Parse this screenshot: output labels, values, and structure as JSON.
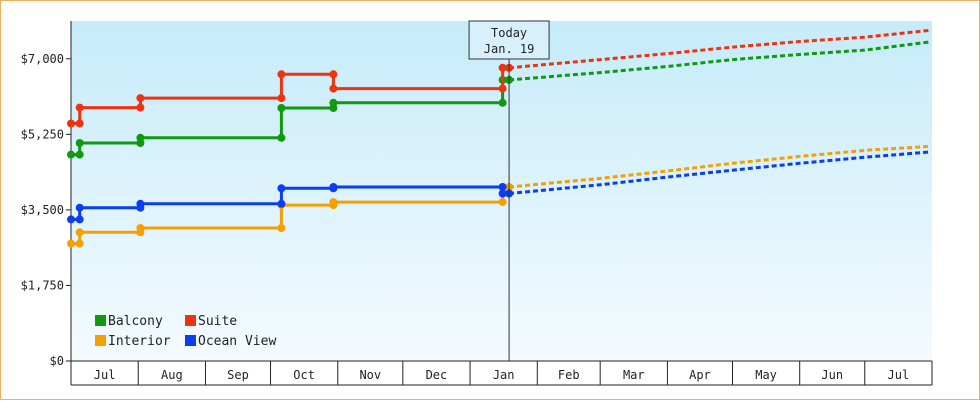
{
  "chart_data": {
    "type": "line",
    "title": "",
    "xlabel": "",
    "ylabel": "",
    "ylim": [
      0,
      7875
    ],
    "y_ticks": [
      0,
      1750,
      3500,
      5250,
      7000
    ],
    "y_tick_labels": [
      "$0",
      "$1,750",
      "$3,500",
      "$5,250",
      "$7,000"
    ],
    "x_month_labels": [
      "Jul",
      "Aug",
      "Sep",
      "Oct",
      "Nov",
      "Dec",
      "Jan",
      "Feb",
      "Mar",
      "Apr",
      "May",
      "Jun",
      "Jul"
    ],
    "x_range": [
      "2023-07-01",
      "2024-07-31"
    ],
    "today": {
      "date": "2024-01-19",
      "label_line1": "Today",
      "label_line2": "Jan. 19"
    },
    "grid": false,
    "legend_placement": "bottom-left",
    "series": [
      {
        "name": "Balcony",
        "color": "#119911",
        "history": [
          [
            "2023-07-01",
            4780
          ],
          [
            "2023-07-05",
            4780
          ],
          [
            "2023-07-05",
            5050
          ],
          [
            "2023-08-02",
            5050
          ],
          [
            "2023-08-02",
            5170
          ],
          [
            "2023-10-06",
            5170
          ],
          [
            "2023-10-06",
            5860
          ],
          [
            "2023-10-30",
            5860
          ],
          [
            "2023-10-30",
            5980
          ],
          [
            "2024-01-16",
            5980
          ],
          [
            "2024-01-16",
            6510
          ],
          [
            "2024-01-19",
            6510
          ]
        ],
        "forecast": [
          [
            "2024-01-19",
            6510
          ],
          [
            "2024-03-01",
            6680
          ],
          [
            "2024-04-01",
            6820
          ],
          [
            "2024-05-01",
            6980
          ],
          [
            "2024-06-01",
            7100
          ],
          [
            "2024-07-01",
            7200
          ],
          [
            "2024-07-31",
            7390
          ]
        ]
      },
      {
        "name": "Suite",
        "color": "#ee3311",
        "history": [
          [
            "2023-07-01",
            5500
          ],
          [
            "2023-07-05",
            5500
          ],
          [
            "2023-07-05",
            5870
          ],
          [
            "2023-08-02",
            5870
          ],
          [
            "2023-08-02",
            6090
          ],
          [
            "2023-10-06",
            6090
          ],
          [
            "2023-10-06",
            6640
          ],
          [
            "2023-10-30",
            6640
          ],
          [
            "2023-10-30",
            6310
          ],
          [
            "2024-01-16",
            6310
          ],
          [
            "2024-01-16",
            6790
          ],
          [
            "2024-01-19",
            6790
          ]
        ],
        "forecast": [
          [
            "2024-01-19",
            6790
          ],
          [
            "2024-03-01",
            6980
          ],
          [
            "2024-04-01",
            7120
          ],
          [
            "2024-05-01",
            7270
          ],
          [
            "2024-06-01",
            7400
          ],
          [
            "2024-07-01",
            7500
          ],
          [
            "2024-07-31",
            7660
          ]
        ]
      },
      {
        "name": "Interior",
        "color": "#f5a000",
        "history": [
          [
            "2023-07-01",
            2720
          ],
          [
            "2023-07-05",
            2720
          ],
          [
            "2023-07-05",
            2980
          ],
          [
            "2023-08-02",
            2980
          ],
          [
            "2023-08-02",
            3080
          ],
          [
            "2023-10-06",
            3080
          ],
          [
            "2023-10-06",
            3610
          ],
          [
            "2023-10-30",
            3610
          ],
          [
            "2023-10-30",
            3680
          ],
          [
            "2024-01-16",
            3680
          ],
          [
            "2024-01-16",
            4030
          ],
          [
            "2024-01-19",
            4030
          ]
        ],
        "forecast": [
          [
            "2024-01-19",
            4030
          ],
          [
            "2024-03-01",
            4230
          ],
          [
            "2024-04-01",
            4400
          ],
          [
            "2024-05-01",
            4580
          ],
          [
            "2024-06-01",
            4740
          ],
          [
            "2024-07-01",
            4880
          ],
          [
            "2024-07-31",
            4970
          ]
        ]
      },
      {
        "name": "Ocean View",
        "color": "#0a3ef0",
        "history": [
          [
            "2023-07-01",
            3280
          ],
          [
            "2023-07-05",
            3280
          ],
          [
            "2023-07-05",
            3550
          ],
          [
            "2023-08-02",
            3550
          ],
          [
            "2023-08-02",
            3640
          ],
          [
            "2023-10-06",
            3640
          ],
          [
            "2023-10-06",
            4000
          ],
          [
            "2023-10-30",
            4000
          ],
          [
            "2023-10-30",
            4030
          ],
          [
            "2024-01-16",
            4030
          ],
          [
            "2024-01-16",
            3880
          ],
          [
            "2024-01-19",
            3880
          ]
        ],
        "forecast": [
          [
            "2024-01-19",
            3880
          ],
          [
            "2024-03-01",
            4080
          ],
          [
            "2024-04-01",
            4260
          ],
          [
            "2024-05-01",
            4420
          ],
          [
            "2024-06-01",
            4580
          ],
          [
            "2024-07-01",
            4720
          ],
          [
            "2024-07-31",
            4840
          ]
        ]
      }
    ]
  }
}
